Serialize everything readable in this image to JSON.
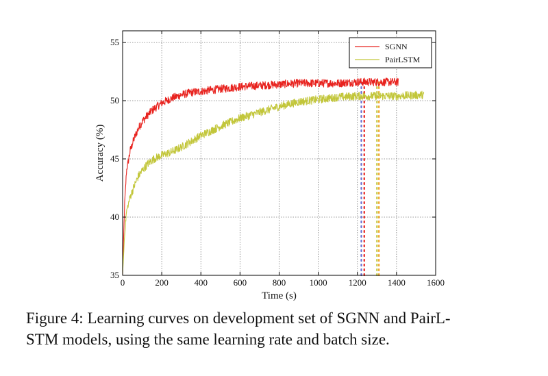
{
  "chart_data": {
    "type": "line",
    "title": "",
    "xlabel": "Time (s)",
    "ylabel": "Accuracy (%)",
    "xlim": [
      0,
      1600
    ],
    "ylim": [
      35,
      56
    ],
    "xticks": [
      0,
      200,
      400,
      600,
      800,
      1000,
      1200,
      1400,
      1600
    ],
    "yticks": [
      35,
      40,
      45,
      50,
      55
    ],
    "grid": true,
    "legend_position": "top-right",
    "series": [
      {
        "name": "SGNN",
        "color": "#e8231f",
        "x": [
          0,
          10,
          20,
          40,
          60,
          80,
          100,
          130,
          160,
          200,
          250,
          300,
          350,
          400,
          500,
          600,
          700,
          800,
          900,
          1000,
          1100,
          1200,
          1300,
          1410
        ],
        "y": [
          35,
          41,
          44,
          45.8,
          46.8,
          47.6,
          48.2,
          48.8,
          49.3,
          49.8,
          50.2,
          50.5,
          50.7,
          50.8,
          51.0,
          51.2,
          51.3,
          51.4,
          51.5,
          51.5,
          51.5,
          51.6,
          51.6,
          51.6
        ]
      },
      {
        "name": "PairLSTM",
        "color": "#c2c63a",
        "x": [
          0,
          10,
          20,
          40,
          60,
          80,
          100,
          130,
          160,
          200,
          250,
          300,
          350,
          400,
          500,
          600,
          700,
          800,
          900,
          1000,
          1100,
          1200,
          1300,
          1400,
          1540
        ],
        "y": [
          35,
          38.5,
          40.5,
          41.8,
          42.7,
          43.5,
          44.0,
          44.6,
          45.0,
          45.3,
          45.6,
          46.0,
          46.5,
          47.0,
          47.8,
          48.5,
          49.0,
          49.5,
          49.9,
          50.1,
          50.3,
          50.4,
          50.4,
          50.4,
          50.5
        ]
      }
    ],
    "annotations": [
      {
        "type": "vline",
        "x": 1220,
        "style": "dotted",
        "color": "#6a6fd0"
      },
      {
        "type": "vline",
        "x": 1235,
        "style": "dotted",
        "color": "#e8231f"
      },
      {
        "type": "vline",
        "x": 1300,
        "style": "dotted",
        "color": "#c2c63a"
      },
      {
        "type": "vline",
        "x": 1310,
        "style": "dotted",
        "color": "#f0a52a"
      }
    ]
  },
  "caption": {
    "line1": "Figure 4: Learning curves on development set of SGNN and PairL-",
    "line2": "STM models, using the same learning rate and batch size."
  }
}
